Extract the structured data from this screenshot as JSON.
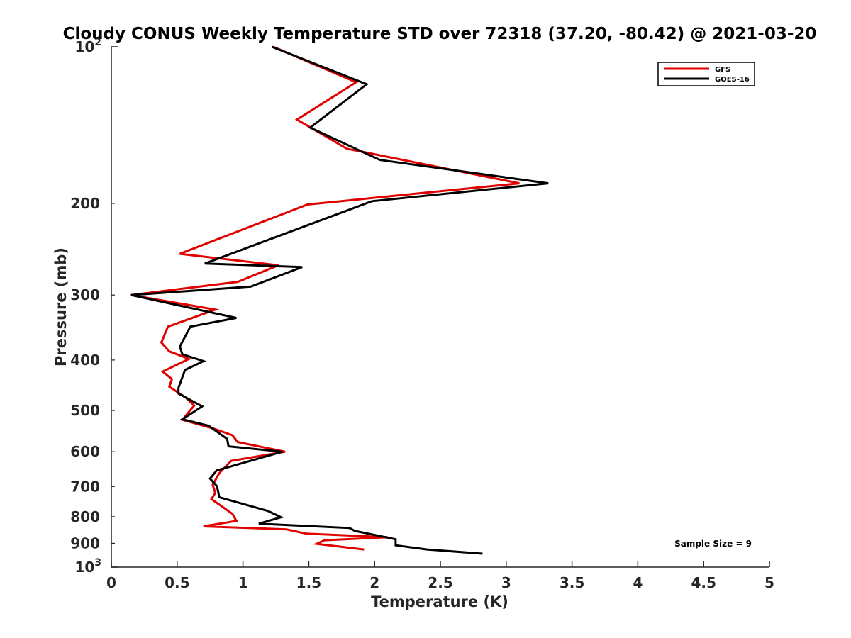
{
  "chart_data": {
    "type": "line",
    "title": "Cloudy CONUS Weekly Temperature STD over 72318 (37.20, -80.42) @ 2021-03-20",
    "xlabel": "Temperature (K)",
    "ylabel": "Pressure (mb)",
    "xlim": [
      0,
      5
    ],
    "ylim": [
      100,
      1000
    ],
    "yscale": "log",
    "y_reversed": true,
    "x_ticks": [
      0,
      0.5,
      1,
      1.5,
      2,
      2.5,
      3,
      3.5,
      4,
      4.5,
      5
    ],
    "x_tick_labels": [
      "0",
      "0.5",
      "1",
      "1.5",
      "2",
      "2.5",
      "3",
      "3.5",
      "4",
      "4.5",
      "5"
    ],
    "y_ticks": [
      {
        "value": 100,
        "base": "10",
        "exp": "2"
      },
      {
        "value": 200,
        "label": "200"
      },
      {
        "value": 300,
        "label": "300"
      },
      {
        "value": 400,
        "label": "400"
      },
      {
        "value": 500,
        "label": "500"
      },
      {
        "value": 600,
        "label": "600"
      },
      {
        "value": 700,
        "label": "700"
      },
      {
        "value": 800,
        "label": "800"
      },
      {
        "value": 900,
        "label": "900"
      },
      {
        "value": 1000,
        "base": "10",
        "exp": "3"
      }
    ],
    "series": [
      {
        "name": "GFS",
        "color": "#e00000",
        "points": [
          [
            1.23,
            100
          ],
          [
            1.86,
            117
          ],
          [
            1.41,
            138
          ],
          [
            1.79,
            157
          ],
          [
            3.1,
            183
          ],
          [
            1.49,
            201
          ],
          [
            0.52,
            250
          ],
          [
            1.27,
            263
          ],
          [
            0.96,
            283
          ],
          [
            0.15,
            300
          ],
          [
            0.79,
            320
          ],
          [
            0.43,
            345
          ],
          [
            0.38,
            370
          ],
          [
            0.44,
            385
          ],
          [
            0.59,
            398
          ],
          [
            0.39,
            421
          ],
          [
            0.46,
            435
          ],
          [
            0.44,
            450
          ],
          [
            0.56,
            471
          ],
          [
            0.63,
            489
          ],
          [
            0.54,
            521
          ],
          [
            0.77,
            541
          ],
          [
            0.92,
            558
          ],
          [
            0.96,
            575
          ],
          [
            1.32,
            600
          ],
          [
            0.91,
            625
          ],
          [
            0.82,
            660
          ],
          [
            0.77,
            695
          ],
          [
            0.79,
            720
          ],
          [
            0.76,
            740
          ],
          [
            0.92,
            790
          ],
          [
            0.95,
            815
          ],
          [
            0.7,
            835
          ],
          [
            1.33,
            846
          ],
          [
            1.48,
            862
          ],
          [
            2.1,
            876
          ],
          [
            1.62,
            888
          ],
          [
            1.56,
            902
          ],
          [
            1.92,
            925
          ]
        ]
      },
      {
        "name": "GOES-16",
        "color": "#000000",
        "points": [
          [
            1.22,
            100
          ],
          [
            1.94,
            118
          ],
          [
            1.51,
            143
          ],
          [
            2.04,
            165
          ],
          [
            3.32,
            183
          ],
          [
            1.98,
            198
          ],
          [
            0.71,
            261
          ],
          [
            1.45,
            265
          ],
          [
            1.06,
            289
          ],
          [
            0.15,
            300
          ],
          [
            0.95,
            332
          ],
          [
            0.6,
            345
          ],
          [
            0.52,
            377
          ],
          [
            0.54,
            390
          ],
          [
            0.7,
            402
          ],
          [
            0.56,
            418
          ],
          [
            0.51,
            452
          ],
          [
            0.51,
            464
          ],
          [
            0.69,
            491
          ],
          [
            0.54,
            520
          ],
          [
            0.74,
            535
          ],
          [
            0.88,
            567
          ],
          [
            0.89,
            586
          ],
          [
            1.3,
            600
          ],
          [
            0.8,
            652
          ],
          [
            0.75,
            676
          ],
          [
            0.8,
            698
          ],
          [
            0.81,
            712
          ],
          [
            0.82,
            734
          ],
          [
            1.19,
            780
          ],
          [
            1.29,
            802
          ],
          [
            1.12,
            825
          ],
          [
            1.81,
            841
          ],
          [
            1.85,
            852
          ],
          [
            2.16,
            884
          ],
          [
            2.16,
            908
          ],
          [
            2.4,
            925
          ],
          [
            2.82,
            942
          ]
        ]
      }
    ],
    "legend_position": "top-right",
    "annotation": "Sample Size = 9"
  }
}
